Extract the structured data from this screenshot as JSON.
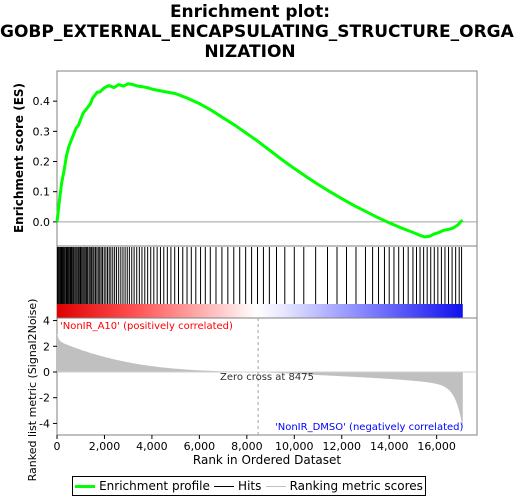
{
  "title_lines": [
    "Enrichment plot:",
    "GOBP_EXTERNAL_ENCAPSULATING_STRUCTURE_ORGA",
    "NIZATION"
  ],
  "legend": {
    "enrichment": "Enrichment profile",
    "hits": "Hits",
    "ranking": "Ranking metric scores"
  },
  "annotations": {
    "pos_label": "'NonIR_A10' (positively correlated)",
    "neg_label": "'NonIR_DMSO' (negatively correlated)",
    "zero_cross": "Zero cross at 8475"
  },
  "colors": {
    "enrichment": "#00ff00",
    "hits": "#000000",
    "ranking_fill": "#c0c0c0",
    "pos_text": "#ff0000",
    "neg_text": "#0000ff"
  },
  "chart_data": {
    "type": "line",
    "xlabel": "Rank in Ordered Dataset",
    "ylabel_top": "Enrichment score (ES)",
    "ylabel_bottom": "Ranked list metric (Signal2Noise)",
    "xlim": [
      0,
      17700
    ],
    "xticks": [
      0,
      2000,
      4000,
      6000,
      8000,
      10000,
      12000,
      14000,
      16000
    ],
    "xtick_labels": [
      "0",
      "2,000",
      "4,000",
      "6,000",
      "8,000",
      "10,000",
      "12,000",
      "14,000",
      "16,000"
    ],
    "es_ylim": [
      -0.08,
      0.5
    ],
    "es_yticks": [
      0.0,
      0.1,
      0.2,
      0.3,
      0.4
    ],
    "es_ytick_labels": [
      "0.0",
      "0.1",
      "0.2",
      "0.3",
      "0.4"
    ],
    "metric_ylim": [
      -4.9,
      4.2
    ],
    "metric_yticks": [
      -4,
      -2,
      0,
      2,
      4
    ],
    "metric_ytick_labels": [
      "-4",
      "-2",
      "0",
      "2",
      "4"
    ],
    "zero_cross": 8475,
    "dataset_size": 17100,
    "enrichment_profile": {
      "x": [
        0,
        100,
        200,
        300,
        400,
        500,
        600,
        700,
        800,
        900,
        1000,
        1100,
        1200,
        1300,
        1400,
        1500,
        1600,
        1700,
        1800,
        2000,
        2200,
        2400,
        2600,
        2800,
        3000,
        3200,
        3400,
        3600,
        3800,
        4000,
        4500,
        5000,
        5500,
        6000,
        6500,
        7000,
        7500,
        8000,
        8500,
        9000,
        9500,
        10000,
        10500,
        11000,
        11500,
        12000,
        12500,
        13000,
        13500,
        14000,
        14500,
        15000,
        15300,
        15500,
        15700,
        15900,
        16100,
        16300,
        16500,
        16700,
        16900,
        17000,
        17100
      ],
      "es": [
        0.0,
        0.07,
        0.13,
        0.17,
        0.22,
        0.25,
        0.27,
        0.29,
        0.31,
        0.32,
        0.34,
        0.36,
        0.37,
        0.38,
        0.39,
        0.41,
        0.42,
        0.43,
        0.43,
        0.445,
        0.452,
        0.445,
        0.455,
        0.45,
        0.458,
        0.455,
        0.45,
        0.448,
        0.445,
        0.44,
        0.432,
        0.425,
        0.41,
        0.392,
        0.37,
        0.345,
        0.32,
        0.293,
        0.265,
        0.235,
        0.205,
        0.177,
        0.15,
        0.124,
        0.1,
        0.077,
        0.055,
        0.035,
        0.015,
        -0.003,
        -0.02,
        -0.035,
        -0.045,
        -0.05,
        -0.048,
        -0.04,
        -0.035,
        -0.028,
        -0.025,
        -0.02,
        -0.01,
        0.0,
        0.005
      ]
    },
    "hit_ranks": [
      20,
      60,
      110,
      150,
      190,
      230,
      270,
      310,
      350,
      400,
      440,
      480,
      520,
      570,
      610,
      660,
      700,
      750,
      800,
      850,
      900,
      940,
      990,
      1040,
      1090,
      1140,
      1190,
      1240,
      1290,
      1350,
      1400,
      1450,
      1510,
      1560,
      1620,
      1680,
      1740,
      1800,
      1860,
      1920,
      1990,
      2060,
      2130,
      2200,
      2270,
      2350,
      2430,
      2510,
      2600,
      2690,
      2780,
      2870,
      2960,
      3050,
      3150,
      3250,
      3360,
      3470,
      3580,
      3700,
      3820,
      3950,
      4080,
      4220,
      4360,
      4500,
      4650,
      4800,
      4960,
      5120,
      5300,
      5480,
      5660,
      5850,
      6050,
      6250,
      6460,
      6700,
      6950,
      7200,
      7450,
      7700,
      7950,
      8200,
      8450,
      8700,
      8950,
      9250,
      9600,
      10000,
      10400,
      10900,
      11400,
      11800,
      12200,
      12600,
      13000,
      13300,
      13550,
      13800,
      14000,
      14200,
      14400,
      14600,
      14800,
      15000,
      15150,
      15300,
      15450,
      15600,
      15750,
      15900,
      16050,
      16200,
      16350,
      16500,
      16650,
      16800,
      16950,
      17050
    ]
  }
}
